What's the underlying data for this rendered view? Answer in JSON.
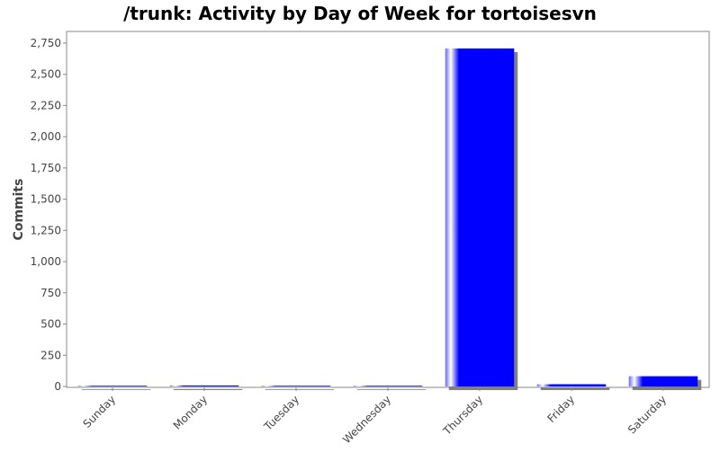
{
  "chart_data": {
    "type": "bar",
    "title": "/trunk: Activity by Day of Week for tortoisesvn",
    "xlabel": "",
    "ylabel": "Commits",
    "categories": [
      "Sunday",
      "Monday",
      "Tuesday",
      "Wednesday",
      "Thursday",
      "Friday",
      "Saturday"
    ],
    "series": [
      {
        "values": [
          1,
          8,
          1,
          1,
          2707,
          18,
          82
        ]
      }
    ],
    "ylim": [
      0,
      2850
    ],
    "yticks": [
      0,
      250,
      500,
      750,
      1000,
      1250,
      1500,
      1750,
      2000,
      2250,
      2500,
      2750
    ],
    "ytick_labels": [
      "0",
      "250",
      "500",
      "750",
      "1,000",
      "1,250",
      "1,500",
      "1,750",
      "2,000",
      "2,250",
      "2,500",
      "2,750"
    ],
    "grid": false,
    "legend": "none",
    "colors": {
      "bar": "#0000ff",
      "bar_highlight": "#ffffff",
      "shadow": "#808080",
      "axis": "#888888"
    }
  }
}
